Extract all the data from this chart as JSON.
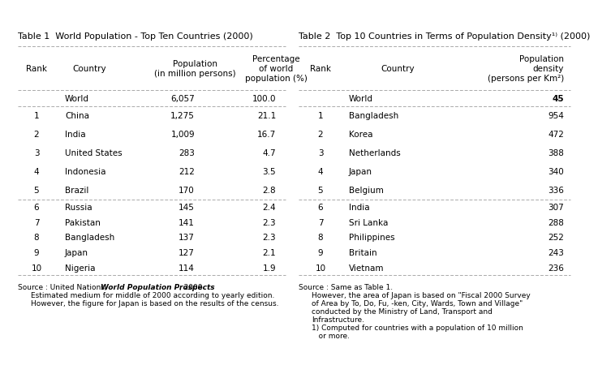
{
  "table1_title": "Table 1  World Population - Top Ten Countries (2000)",
  "table2_title": "Table 2  Top 10 Countries in Terms of Population Density¹⁾ (2000)",
  "table1_headers": [
    "Rank",
    "Country",
    "Population\n(in million persons)",
    "Percentage\nof world\npopulation (%)"
  ],
  "table2_headers": [
    "Rank",
    "Country",
    "Population\ndensity\n(persons per Km²)"
  ],
  "table1_world": [
    "",
    "World",
    "6,057",
    "100.0"
  ],
  "table1_rows": [
    [
      "1",
      "China",
      "1,275",
      "21.1"
    ],
    [
      "2",
      "India",
      "1,009",
      "16.7"
    ],
    [
      "3",
      "United States",
      "283",
      "4.7"
    ],
    [
      "4",
      "Indonesia",
      "212",
      "3.5"
    ],
    [
      "5",
      "Brazil",
      "170",
      "2.8"
    ],
    [
      "6",
      "Russia",
      "145",
      "2.4"
    ],
    [
      "7",
      "Pakistan",
      "141",
      "2.3"
    ],
    [
      "8",
      "Bangladesh",
      "137",
      "2.3"
    ],
    [
      "9",
      "Japan",
      "127",
      "2.1"
    ],
    [
      "10",
      "Nigeria",
      "114",
      "1.9"
    ]
  ],
  "table2_world": [
    "",
    "World",
    "45"
  ],
  "table2_rows": [
    [
      "1",
      "Bangladesh",
      "954"
    ],
    [
      "2",
      "Korea",
      "472"
    ],
    [
      "3",
      "Netherlands",
      "388"
    ],
    [
      "4",
      "Japan",
      "340"
    ],
    [
      "5",
      "Belgium",
      "336"
    ],
    [
      "6",
      "India",
      "307"
    ],
    [
      "7",
      "Sri Lanka",
      "288"
    ],
    [
      "8",
      "Philippines",
      "252"
    ],
    [
      "9",
      "Britain",
      "243"
    ],
    [
      "10",
      "Vietnam",
      "236"
    ]
  ],
  "source1_normal": "Source : United Nations,  ",
  "source1_italic": "World Population Prospects",
  "source1_rest": ", 2000",
  "source1_line2": "Estimated medium for middle of 2000 according to yearly edition.",
  "source1_line3": "However, the figure for Japan is based on the results of the census.",
  "source2_line1": "Source : Same as Table 1.",
  "source2_line2": "However, the area of Japan is based on \"Fiscal 2000 Survey",
  "source2_line3": "of Area by To, Do, Fu, -ken, City, Wards, Town and Village\"",
  "source2_line4": "conducted by the Ministry of Land, Transport and",
  "source2_line5": "Infrastructure.",
  "source2_line6": "1) Computed for countries with a population of 10 million",
  "source2_line7": "   or more.",
  "bg_color": "#ffffff",
  "text_color": "#000000",
  "line_color": "#aaaaaa",
  "font_size": 7.5,
  "title_font_size": 8.0,
  "source_font_size": 6.5
}
